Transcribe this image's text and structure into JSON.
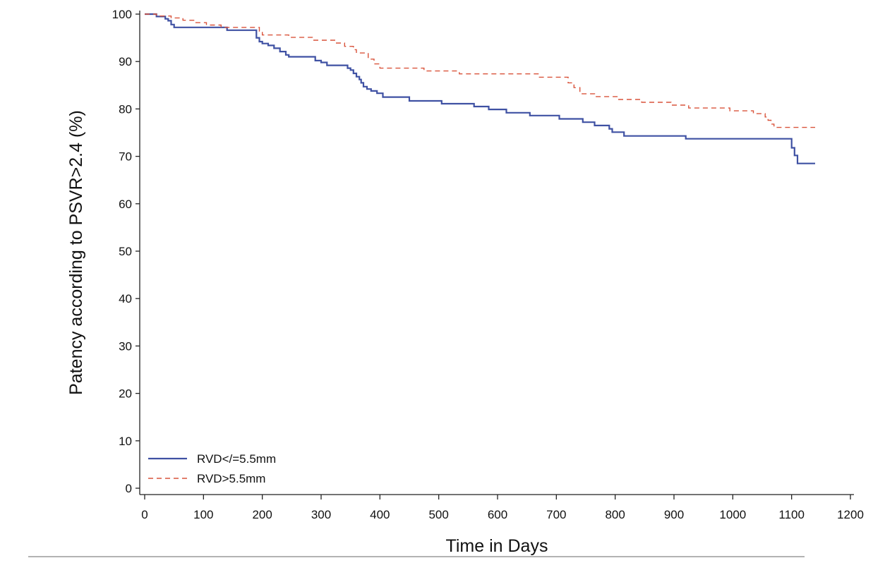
{
  "chart_data": {
    "type": "line",
    "xlabel": "Time in Days",
    "ylabel": "Patency according to PSVR>2.4 (%)",
    "xlim": [
      0,
      1200
    ],
    "ylim": [
      0,
      100
    ],
    "xticks": [
      0,
      100,
      200,
      300,
      400,
      500,
      600,
      700,
      800,
      900,
      1000,
      1100,
      1200
    ],
    "yticks": [
      0,
      10,
      20,
      30,
      40,
      50,
      60,
      70,
      80,
      90,
      100
    ],
    "grid": false,
    "legend_position": "bottom-left",
    "step": true,
    "series": [
      {
        "name": "RVD</=5.5mm",
        "color": "#3f51a3",
        "dash": "solid",
        "points": [
          [
            0,
            100
          ],
          [
            15,
            100
          ],
          [
            20,
            99.5
          ],
          [
            30,
            99.5
          ],
          [
            35,
            99
          ],
          [
            40,
            98.6
          ],
          [
            45,
            97.8
          ],
          [
            50,
            97.2
          ],
          [
            135,
            97.2
          ],
          [
            140,
            96.6
          ],
          [
            185,
            96.6
          ],
          [
            190,
            95
          ],
          [
            195,
            94.2
          ],
          [
            200,
            93.8
          ],
          [
            210,
            93.4
          ],
          [
            220,
            92.8
          ],
          [
            230,
            92.1
          ],
          [
            240,
            91.4
          ],
          [
            245,
            91
          ],
          [
            280,
            91
          ],
          [
            290,
            90.2
          ],
          [
            300,
            89.8
          ],
          [
            310,
            89.2
          ],
          [
            340,
            89.2
          ],
          [
            345,
            88.6
          ],
          [
            350,
            88.2
          ],
          [
            355,
            87.5
          ],
          [
            360,
            86.8
          ],
          [
            365,
            86.2
          ],
          [
            368,
            85.5
          ],
          [
            372,
            84.7
          ],
          [
            378,
            84.2
          ],
          [
            385,
            83.8
          ],
          [
            395,
            83.3
          ],
          [
            405,
            82.5
          ],
          [
            445,
            82.5
          ],
          [
            450,
            81.7
          ],
          [
            500,
            81.7
          ],
          [
            505,
            81.1
          ],
          [
            550,
            81.1
          ],
          [
            560,
            80.5
          ],
          [
            580,
            80.5
          ],
          [
            585,
            79.9
          ],
          [
            610,
            79.9
          ],
          [
            615,
            79.2
          ],
          [
            650,
            79.2
          ],
          [
            655,
            78.6
          ],
          [
            700,
            78.6
          ],
          [
            705,
            77.9
          ],
          [
            740,
            77.9
          ],
          [
            745,
            77.2
          ],
          [
            760,
            77.2
          ],
          [
            765,
            76.5
          ],
          [
            785,
            76.5
          ],
          [
            790,
            75.8
          ],
          [
            795,
            75.1
          ],
          [
            810,
            75.1
          ],
          [
            815,
            74.3
          ],
          [
            915,
            74.3
          ],
          [
            920,
            73.7
          ],
          [
            1095,
            73.7
          ],
          [
            1100,
            71.8
          ],
          [
            1105,
            70.2
          ],
          [
            1110,
            68.5
          ],
          [
            1140,
            68.5
          ]
        ]
      },
      {
        "name": "RVD>5.5mm",
        "color": "#d9533b",
        "dash": "dashed",
        "points": [
          [
            0,
            100
          ],
          [
            15,
            100
          ],
          [
            20,
            99.6
          ],
          [
            40,
            99.6
          ],
          [
            45,
            99.2
          ],
          [
            60,
            99.2
          ],
          [
            65,
            98.7
          ],
          [
            80,
            98.7
          ],
          [
            85,
            98.2
          ],
          [
            100,
            98.2
          ],
          [
            105,
            97.7
          ],
          [
            125,
            97.7
          ],
          [
            130,
            97.2
          ],
          [
            190,
            97.2
          ],
          [
            195,
            96.4
          ],
          [
            200,
            95.6
          ],
          [
            240,
            95.6
          ],
          [
            245,
            95.1
          ],
          [
            280,
            95.1
          ],
          [
            285,
            94.5
          ],
          [
            320,
            94.5
          ],
          [
            325,
            93.9
          ],
          [
            335,
            93.9
          ],
          [
            340,
            93.2
          ],
          [
            350,
            93.2
          ],
          [
            355,
            92.5
          ],
          [
            360,
            91.8
          ],
          [
            375,
            91.8
          ],
          [
            380,
            90.5
          ],
          [
            390,
            89.5
          ],
          [
            400,
            88.6
          ],
          [
            470,
            88.6
          ],
          [
            475,
            88
          ],
          [
            530,
            88
          ],
          [
            535,
            87.4
          ],
          [
            665,
            87.4
          ],
          [
            670,
            86.7
          ],
          [
            710,
            86.7
          ],
          [
            720,
            85.5
          ],
          [
            730,
            84.5
          ],
          [
            740,
            83.2
          ],
          [
            760,
            83.2
          ],
          [
            765,
            82.6
          ],
          [
            800,
            82.6
          ],
          [
            805,
            82
          ],
          [
            840,
            82
          ],
          [
            845,
            81.4
          ],
          [
            890,
            81.4
          ],
          [
            895,
            80.8
          ],
          [
            920,
            80.8
          ],
          [
            925,
            80.2
          ],
          [
            990,
            80.2
          ],
          [
            995,
            79.6
          ],
          [
            1030,
            79.6
          ],
          [
            1035,
            79
          ],
          [
            1050,
            79
          ],
          [
            1055,
            78.3
          ],
          [
            1060,
            77.6
          ],
          [
            1065,
            76.8
          ],
          [
            1070,
            76.1
          ],
          [
            1140,
            76.1
          ]
        ]
      }
    ]
  }
}
